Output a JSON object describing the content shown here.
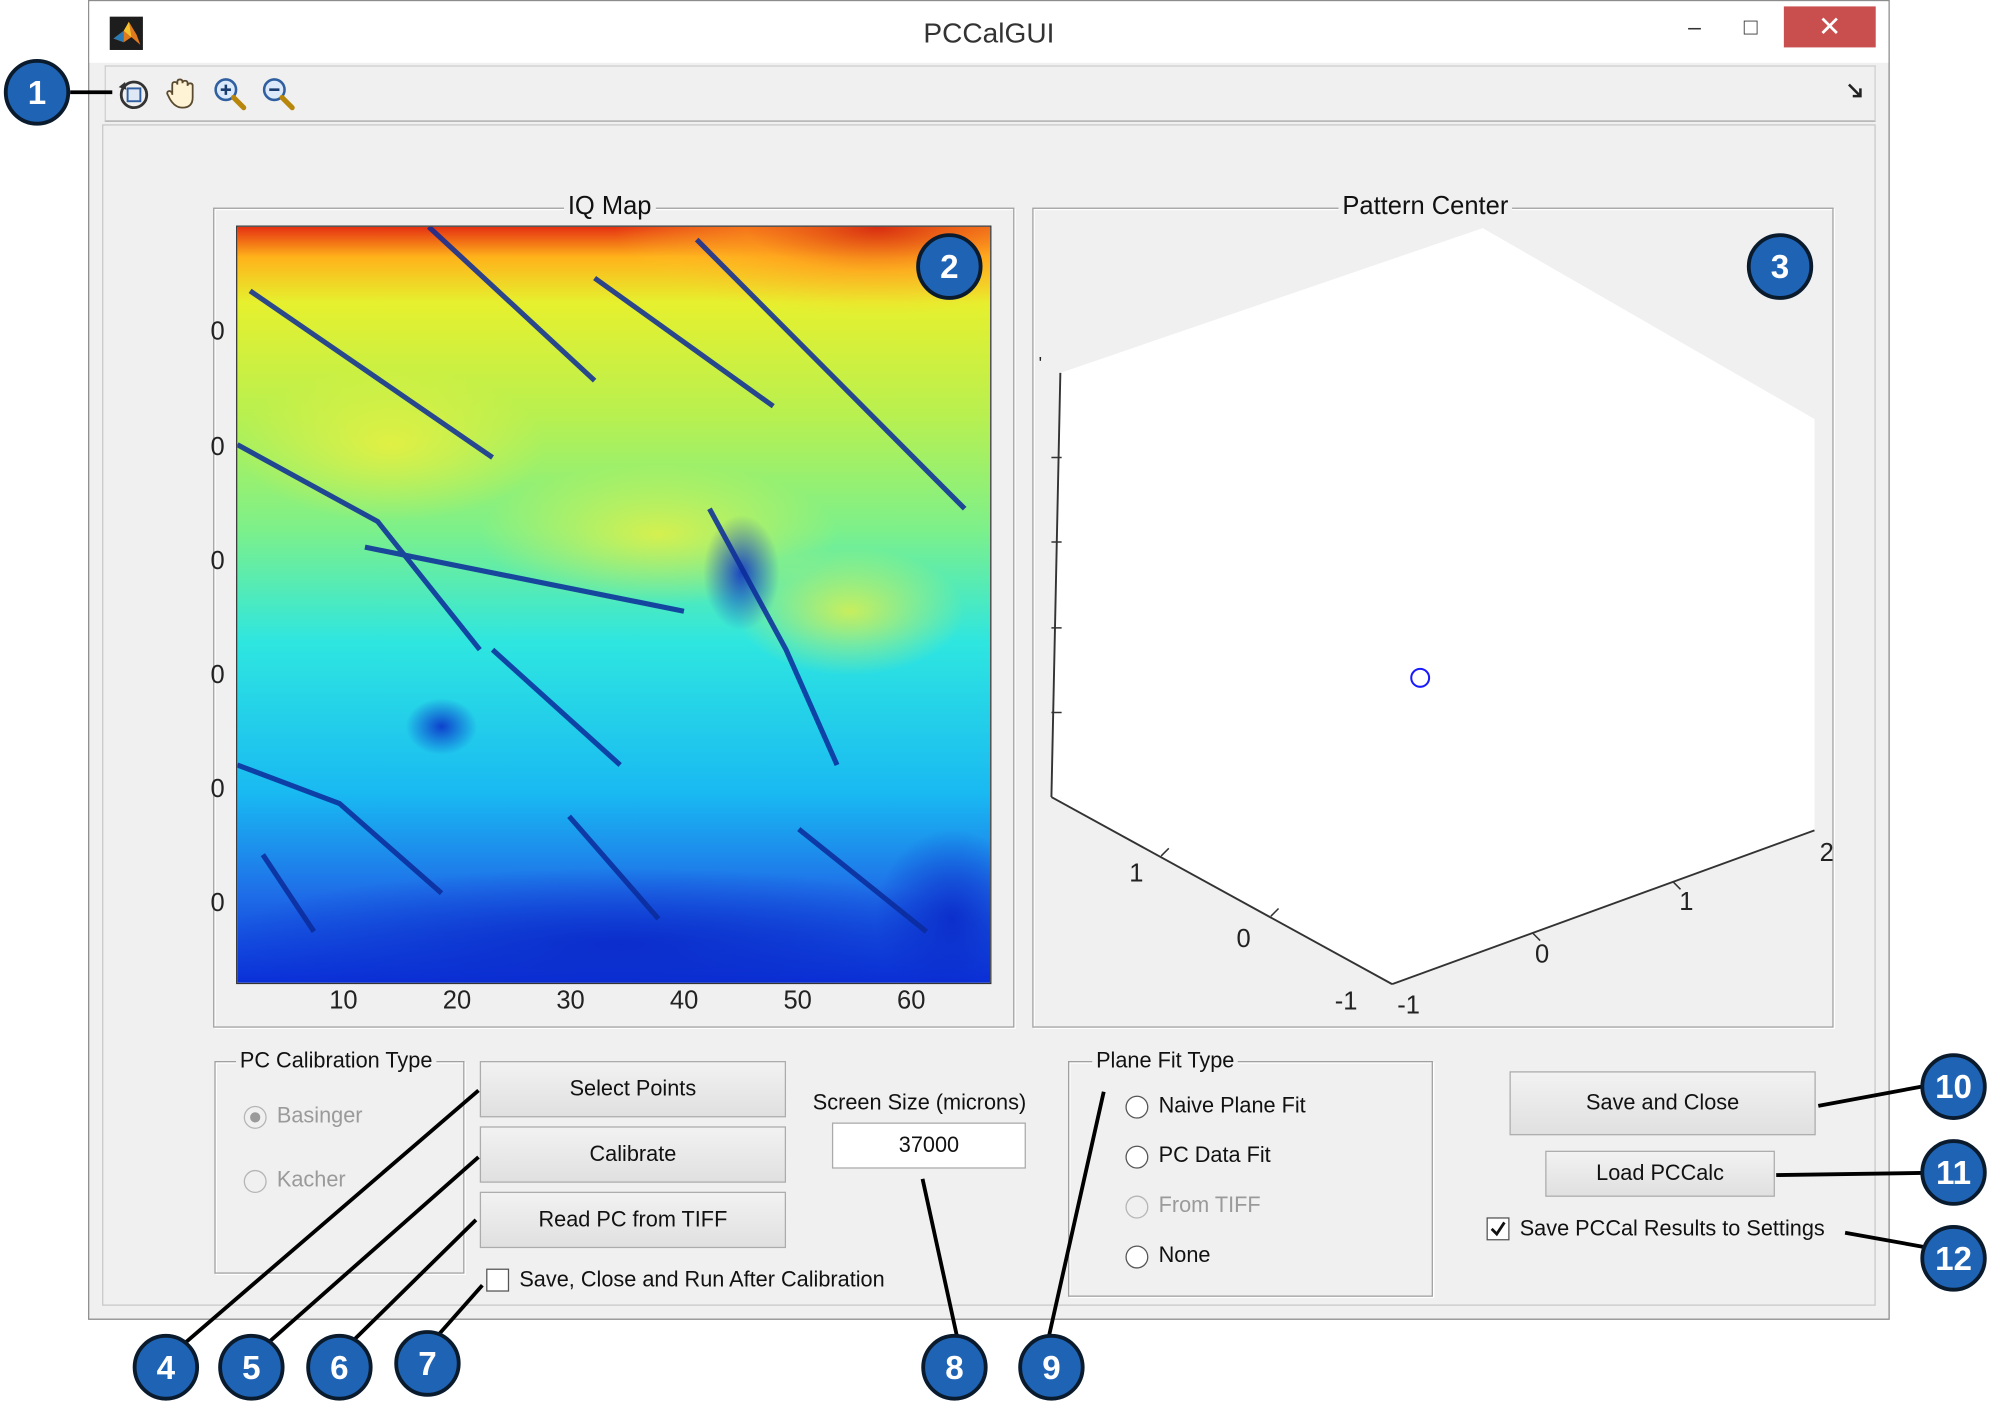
{
  "window": {
    "title": "PCCalGUI",
    "minimize_glyph": "‒",
    "maximize_glyph": "□",
    "close_glyph": "✕"
  },
  "toolbar": {
    "icons": [
      "rotate-3d-icon",
      "pan-hand-icon",
      "zoom-in-icon",
      "zoom-out-icon"
    ],
    "dock_icon": "undock-arrow-icon"
  },
  "iq_map": {
    "title": "IQ Map",
    "x_ticks": [
      "10",
      "20",
      "30",
      "40",
      "50",
      "60"
    ],
    "y_ticks": [
      "0",
      "0",
      "0",
      "0",
      "0",
      "0"
    ],
    "colormap": "jet"
  },
  "pattern_center": {
    "title": "Pattern Center",
    "axis_ticks_left": [
      "1",
      "0",
      "-1"
    ],
    "axis_ticks_right": [
      "-1",
      "0",
      "1",
      "2"
    ],
    "marker_color": "#1a1aff"
  },
  "calibration_type": {
    "title": "PC Calibration Type",
    "options": [
      {
        "label": "Basinger",
        "selected": true,
        "enabled": false
      },
      {
        "label": "Kacher",
        "selected": false,
        "enabled": false
      }
    ]
  },
  "buttons": {
    "select_points": "Select Points",
    "calibrate": "Calibrate",
    "read_pc": "Read PC from TIFF",
    "save_close": "Save and Close",
    "load_pccalc": "Load PCCalc"
  },
  "save_close_run": {
    "label": "Save, Close and Run After Calibration",
    "checked": false
  },
  "screen_size": {
    "label": "Screen Size (microns)",
    "value": "37000"
  },
  "plane_fit": {
    "title": "Plane Fit Type",
    "options": [
      {
        "label": "Naive Plane Fit",
        "enabled": true,
        "selected": false
      },
      {
        "label": "PC Data Fit",
        "enabled": true,
        "selected": false
      },
      {
        "label": "From TIFF",
        "enabled": false,
        "selected": false
      },
      {
        "label": "None",
        "enabled": true,
        "selected": false
      }
    ]
  },
  "save_results": {
    "label": "Save PCCal Results to Settings",
    "checked": true
  },
  "callouts": [
    "1",
    "2",
    "3",
    "4",
    "5",
    "6",
    "7",
    "8",
    "9",
    "10",
    "11",
    "12"
  ],
  "colors": {
    "callout_fill": "#1f63b4",
    "close_button": "#c94f4f",
    "window_bg": "#f0f0f0"
  }
}
